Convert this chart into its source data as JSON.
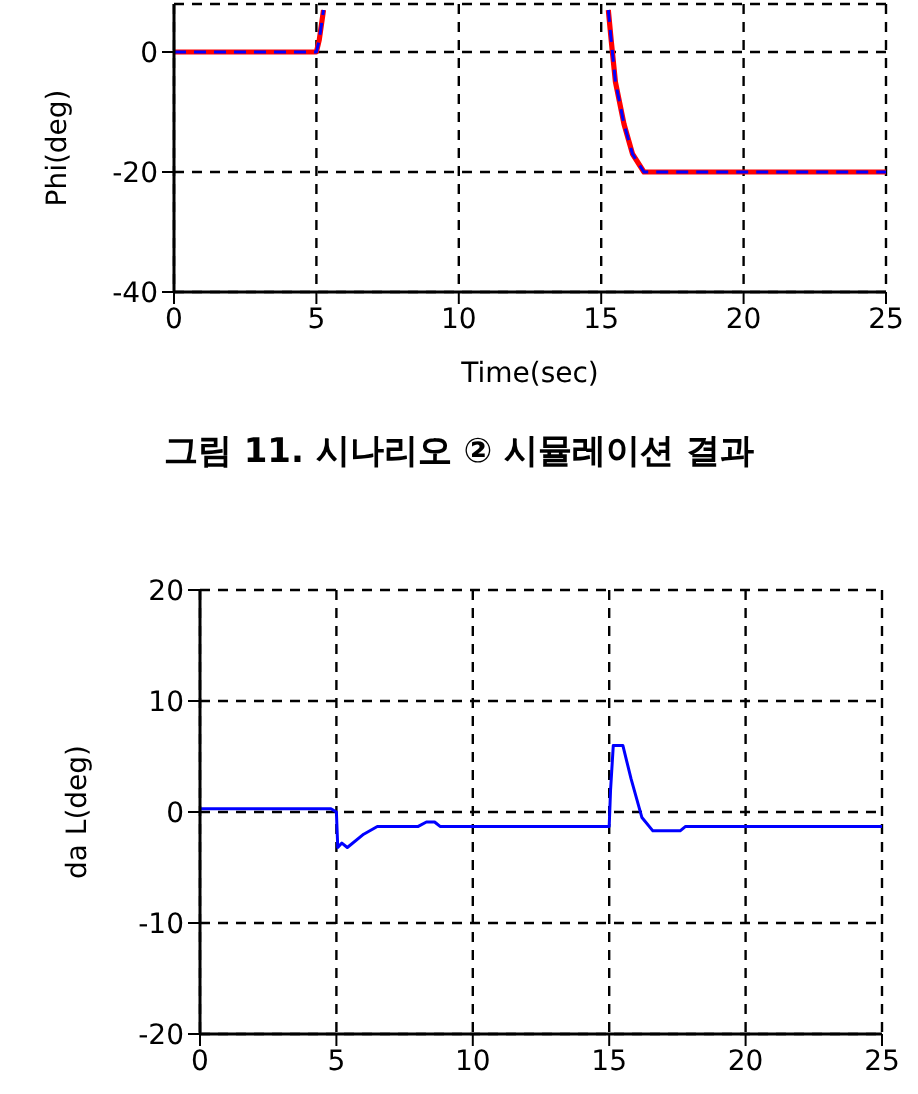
{
  "chart_data": [
    {
      "type": "line",
      "xlabel": "Time(sec)",
      "ylabel": "Phi(deg)",
      "annotations": [
        "그림 11. 시나리오 ② 시뮬레이션 결과"
      ],
      "x": [
        0,
        5,
        5.1,
        5.25,
        10,
        15.25,
        15.35,
        15.5,
        15.8,
        16.1,
        16.5,
        25
      ],
      "series": [
        {
          "color": "#ff0000",
          "line_style": "solid",
          "values": [
            0,
            0,
            2,
            7,
            null,
            7,
            2,
            -5,
            -12,
            -17,
            -20,
            -20
          ]
        },
        {
          "color": "#0000ff",
          "line_style": "dashed",
          "values": [
            0,
            0,
            2,
            7,
            null,
            7,
            2,
            -5,
            -12,
            -17,
            -20,
            -20
          ]
        }
      ],
      "xlim": [
        0,
        25
      ],
      "xticks": [
        0,
        5,
        10,
        15,
        20,
        25
      ],
      "ylim": [
        -40,
        8
      ],
      "yticks": [
        -40,
        -20,
        0
      ],
      "grid": true
    },
    {
      "type": "line",
      "ylabel": "da L(deg)",
      "x": [
        0,
        4.8,
        5,
        5.05,
        5.2,
        5.4,
        6,
        6.5,
        8,
        8.3,
        8.6,
        8.8,
        15,
        15.05,
        15.15,
        15.5,
        15.8,
        16.2,
        16.6,
        17.6,
        17.8,
        25
      ],
      "series": [
        {
          "color": "#0000ff",
          "line_style": "solid",
          "values": [
            0.3,
            0.3,
            0,
            -3.2,
            -2.8,
            -3.2,
            -2,
            -1.3,
            -1.3,
            -0.9,
            -0.9,
            -1.3,
            -1.3,
            2,
            6,
            6,
            3,
            -0.5,
            -1.7,
            -1.7,
            -1.3,
            -1.3
          ]
        }
      ],
      "xlim": [
        0,
        25
      ],
      "xticks": [
        0,
        5,
        10,
        15,
        20,
        25
      ],
      "ylim": [
        -20,
        20
      ],
      "yticks": [
        -20,
        -10,
        0,
        10,
        20
      ],
      "grid": true
    }
  ]
}
